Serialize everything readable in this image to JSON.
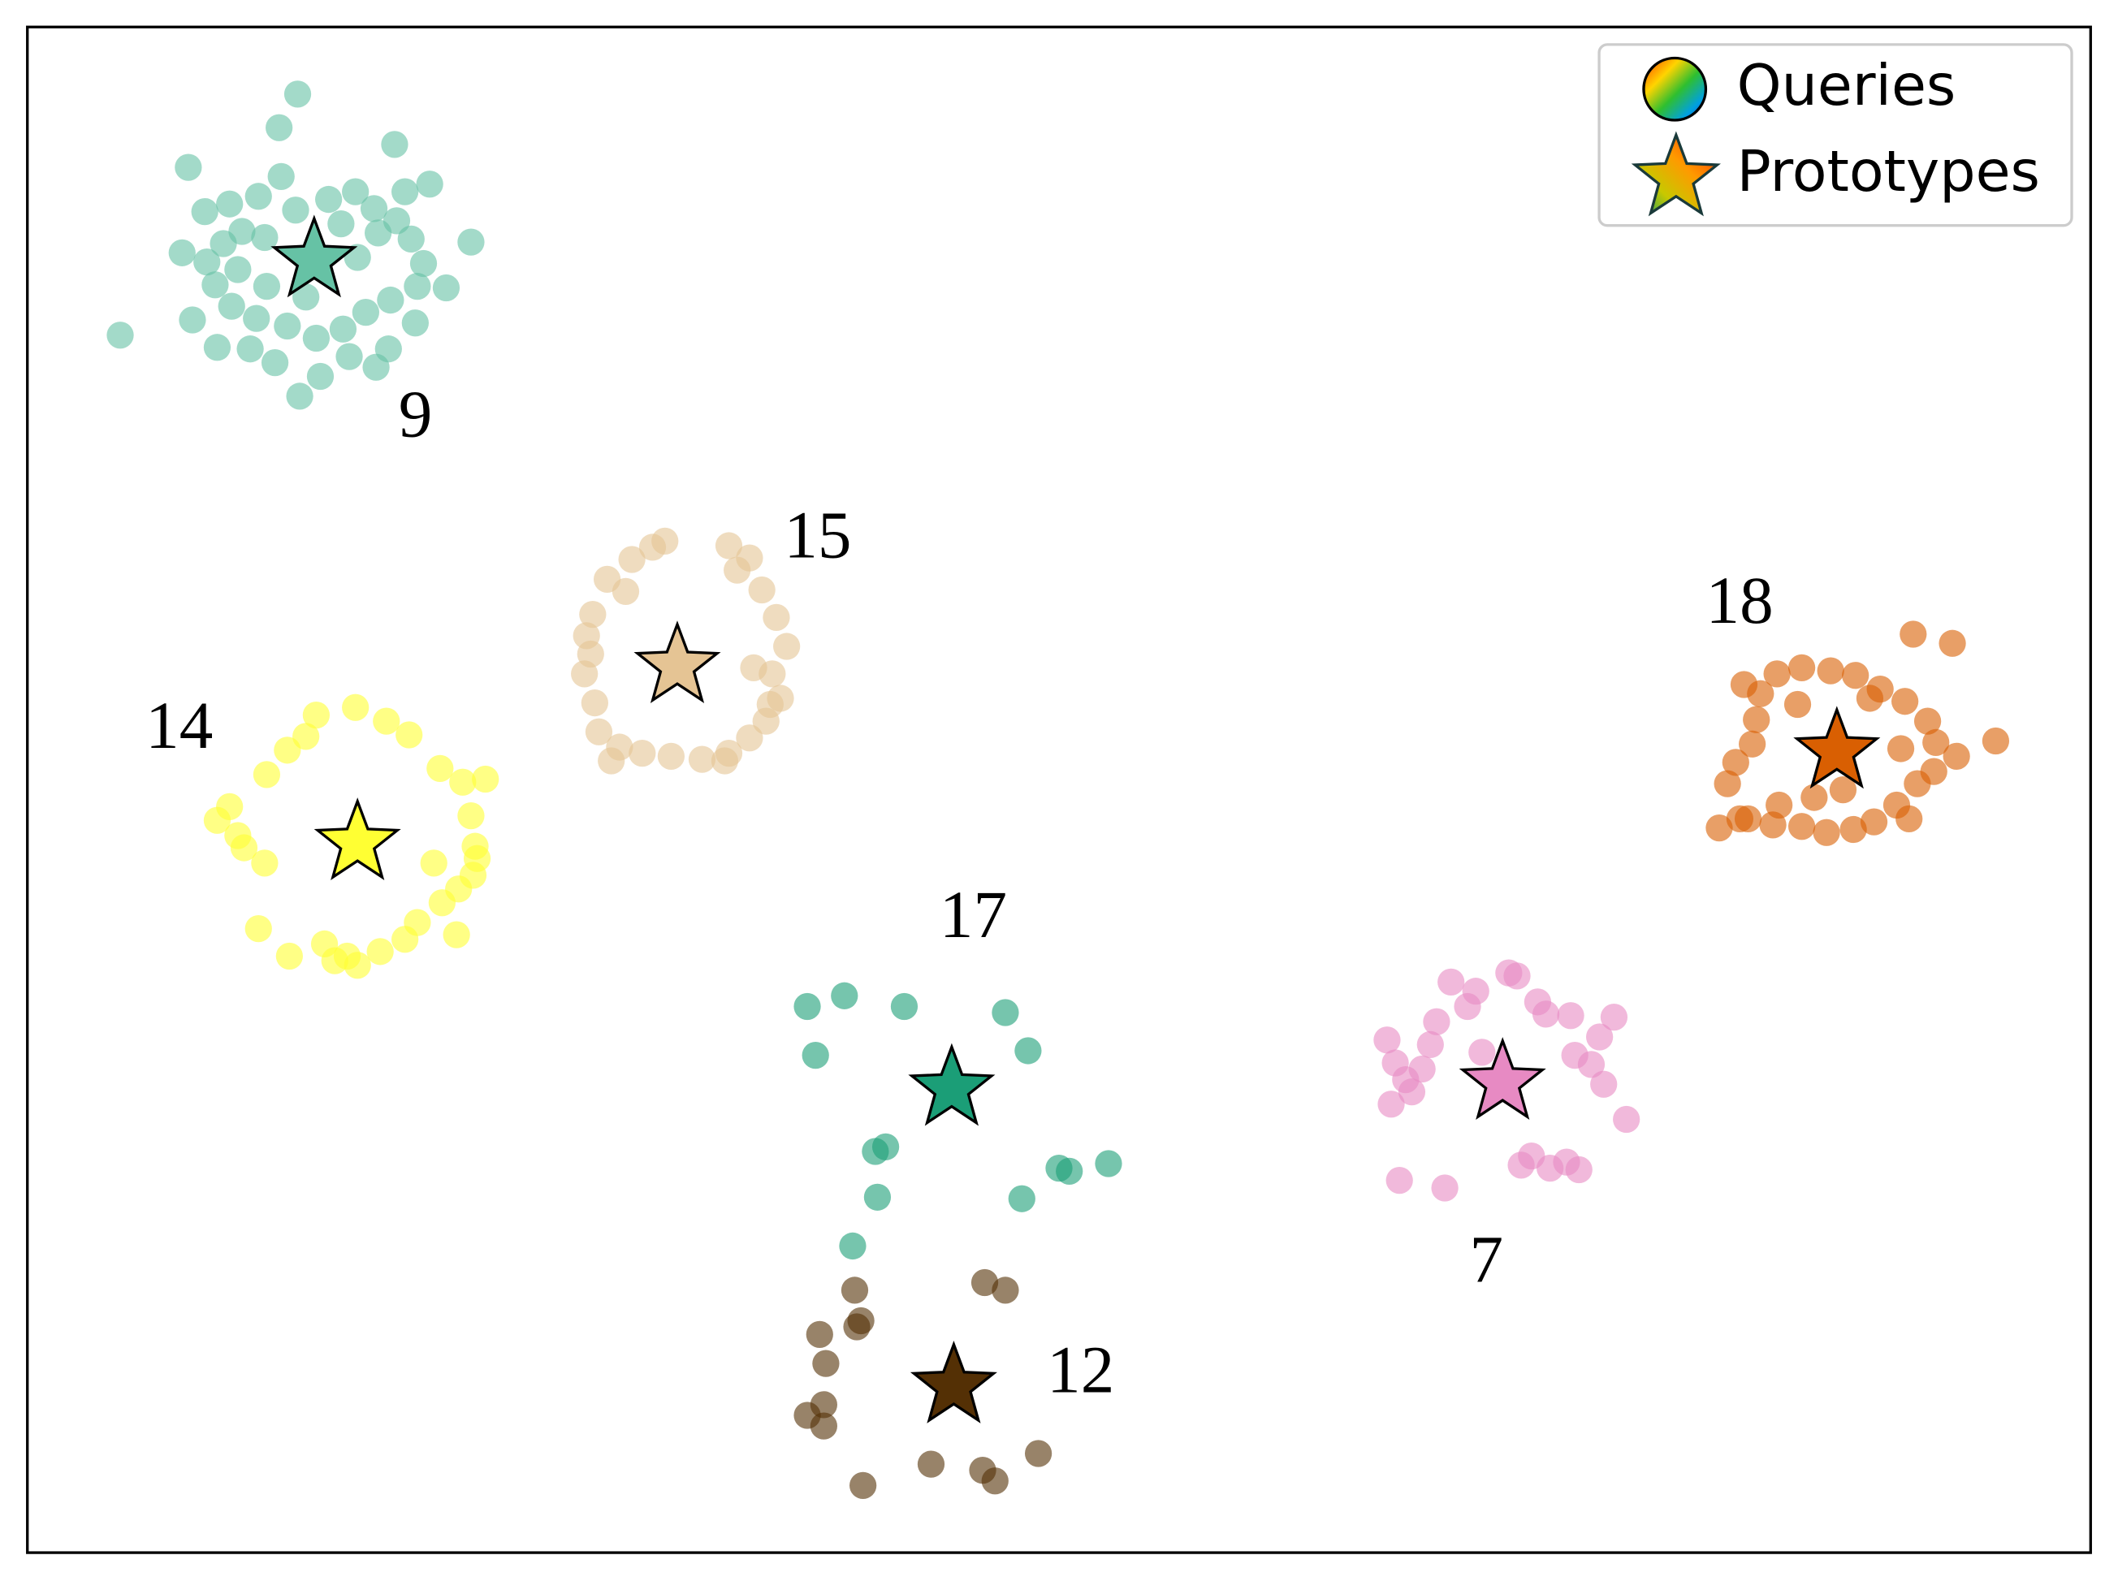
{
  "chart_data": {
    "type": "scatter",
    "xlim": [
      0,
      100
    ],
    "ylim": [
      0,
      100
    ],
    "legend": {
      "position": "upper right",
      "entries": [
        "Queries",
        "Prototypes"
      ]
    },
    "series": [
      {
        "label": "9",
        "color": "#66c2a5",
        "x": [
          4.5,
          13.1,
          13.2,
          21.5,
          17.8,
          7.8,
          19.5,
          12.2,
          12.3,
          9.8,
          8.6,
          10.4,
          11.2,
          14.6,
          15.9,
          16.8,
          17.9,
          18.6,
          19.2,
          18.9,
          17.6,
          16.4,
          15.3,
          14.0,
          12.6,
          11.1,
          9.9,
          9.1,
          8.7,
          9.5,
          10.2,
          11.6,
          13.5,
          16.0,
          17.0,
          15.2,
          11.5,
          8.0,
          10.8,
          12.0,
          15.6,
          17.5,
          18.8,
          20.3,
          7.5,
          14.2,
          16.9,
          9.2,
          13.0,
          18.3
        ],
        "y": [
          79.8,
          95.6,
          75.8,
          85.9,
          92.3,
          90.8,
          89.7,
          93.4,
          90.2,
          88.4,
          87.9,
          86.6,
          88.9,
          88.7,
          89.2,
          88.1,
          87.3,
          86.1,
          84.5,
          83.0,
          82.1,
          81.3,
          80.2,
          79.6,
          80.4,
          80.9,
          81.7,
          83.1,
          84.6,
          85.8,
          84.1,
          83.0,
          82.3,
          84.9,
          86.5,
          87.1,
          86.2,
          80.8,
          78.9,
          78.0,
          78.4,
          78.9,
          80.6,
          82.9,
          85.2,
          77.1,
          77.7,
          79.0,
          88.0,
          89.2
        ],
        "prototype": {
          "x": 13.9,
          "y": 84.7
        }
      },
      {
        "label": "15",
        "color": "#e5c494",
        "x": [
          27.1,
          27.4,
          28.1,
          29.3,
          30.3,
          30.9,
          34.0,
          34.4,
          35.6,
          36.3,
          36.8,
          36.1,
          36.0,
          35.8,
          35.0,
          34.0,
          32.7,
          31.2,
          29.8,
          28.7,
          27.7,
          27.5,
          27.0,
          27.3,
          35.2,
          33.8,
          28.3,
          29.0,
          35.0,
          36.5
        ],
        "y": [
          60.1,
          61.5,
          63.8,
          65.1,
          65.9,
          66.3,
          66.0,
          64.4,
          63.1,
          61.3,
          59.4,
          57.6,
          55.6,
          54.5,
          53.4,
          52.4,
          52.0,
          52.2,
          52.4,
          52.8,
          53.8,
          55.7,
          57.6,
          58.9,
          58.0,
          51.9,
          51.9,
          63.0,
          65.2,
          56.0
        ],
        "prototype": {
          "x": 31.5,
          "y": 58.1
        }
      },
      {
        "label": "14",
        "color": "#ffff33",
        "x": [
          9.2,
          9.8,
          10.2,
          11.5,
          10.5,
          11.6,
          13.5,
          14.0,
          15.9,
          17.4,
          18.5,
          20.0,
          21.1,
          22.2,
          21.5,
          21.7,
          21.8,
          21.6,
          20.9,
          20.1,
          18.9,
          18.3,
          17.1,
          15.5,
          14.9,
          14.4,
          12.7,
          11.2,
          16.0,
          20.8,
          12.6,
          19.7
        ],
        "y": [
          48.0,
          48.9,
          47.0,
          45.2,
          46.2,
          51.0,
          53.5,
          54.9,
          55.4,
          54.5,
          53.6,
          51.4,
          50.5,
          50.7,
          48.3,
          46.3,
          45.5,
          44.4,
          43.5,
          42.6,
          41.3,
          40.2,
          39.4,
          39.1,
          38.8,
          39.9,
          39.1,
          40.9,
          38.5,
          40.5,
          52.6,
          45.2
        ],
        "prototype": {
          "x": 16.0,
          "y": 46.5
        }
      },
      {
        "label": "18",
        "color": "#d95f02",
        "x": [
          82.4,
          82.8,
          83.6,
          83.8,
          84.0,
          83.2,
          84.8,
          86.0,
          87.4,
          88.6,
          89.8,
          91.0,
          92.1,
          92.5,
          92.4,
          91.6,
          90.6,
          89.5,
          88.5,
          87.2,
          86.0,
          84.6,
          83.0,
          82.0,
          84.9,
          91.2,
          93.5,
          95.4,
          91.4,
          93.3,
          85.8,
          83.4,
          90.8,
          88.0,
          86.6,
          89.3
        ],
        "y": [
          50.4,
          51.8,
          53.0,
          54.6,
          56.3,
          56.9,
          57.6,
          58.0,
          57.8,
          57.5,
          56.6,
          55.8,
          54.5,
          53.1,
          51.2,
          50.4,
          49.0,
          47.9,
          47.4,
          47.2,
          47.6,
          47.7,
          48.1,
          47.5,
          49.0,
          48.1,
          52.2,
          53.2,
          60.2,
          59.6,
          55.6,
          48.1,
          52.7,
          50.0,
          49.5,
          56.0
        ],
        "prototype": {
          "x": 87.7,
          "y": 52.5
        }
      },
      {
        "label": "17",
        "color": "#1b9e77",
        "x": [
          37.8,
          39.6,
          38.2,
          42.5,
          47.4,
          48.5,
          41.1,
          41.6,
          41.2,
          50.0,
          50.5,
          52.4,
          48.2,
          40.0
        ],
        "y": [
          35.8,
          36.5,
          32.6,
          35.8,
          35.4,
          32.9,
          26.3,
          26.6,
          23.3,
          25.2,
          25.0,
          25.5,
          23.2,
          20.1
        ],
        "prototype": {
          "x": 44.8,
          "y": 30.4
        }
      },
      {
        "label": "7",
        "color": "#e78ac3",
        "x": [
          65.9,
          66.3,
          66.8,
          67.1,
          67.6,
          68.0,
          68.3,
          69.0,
          69.8,
          70.2,
          71.8,
          72.2,
          73.2,
          73.6,
          74.8,
          76.9,
          76.2,
          75.0,
          75.8,
          76.4,
          77.5,
          74.6,
          75.2,
          73.8,
          72.9,
          72.4,
          68.7,
          66.5,
          66.1,
          70.5
        ],
        "y": [
          33.6,
          32.1,
          31.0,
          30.2,
          31.7,
          33.3,
          34.8,
          37.4,
          35.8,
          36.8,
          38.0,
          37.8,
          36.1,
          35.3,
          35.2,
          35.1,
          33.8,
          32.6,
          32.0,
          30.7,
          28.4,
          25.6,
          25.1,
          25.2,
          26.0,
          25.4,
          23.9,
          24.4,
          29.4,
          32.8
        ],
        "prototype": {
          "x": 71.5,
          "y": 30.8
        }
      },
      {
        "label": "12",
        "color": "#543005",
        "x": [
          40.1,
          40.4,
          40.2,
          38.4,
          38.7,
          38.6,
          37.8,
          38.6,
          40.5,
          43.8,
          46.3,
          46.9,
          49.0,
          46.4,
          47.4
        ],
        "y": [
          17.2,
          15.2,
          14.8,
          14.3,
          12.4,
          9.7,
          9.0,
          8.3,
          4.4,
          5.8,
          5.4,
          4.7,
          6.5,
          17.7,
          17.2
        ],
        "prototype": {
          "x": 44.9,
          "y": 10.9
        }
      }
    ]
  }
}
